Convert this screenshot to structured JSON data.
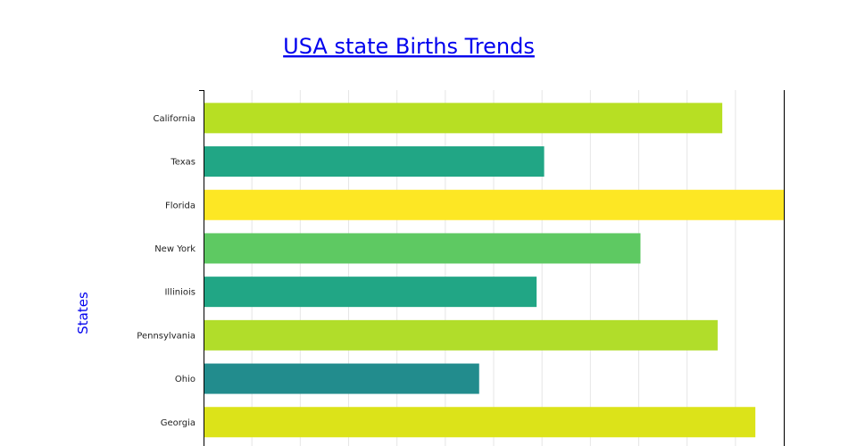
{
  "chart_data": {
    "type": "bar",
    "orientation": "horizontal",
    "title": "USA state Births Trends",
    "xlabel": "",
    "ylabel": "States",
    "categories": [
      "California",
      "Texas",
      "Florida",
      "New York",
      "Illiniois",
      "Pennsylvania",
      "Ohio",
      "Georgia"
    ],
    "values": [
      0.894,
      0.587,
      1.0,
      0.753,
      0.574,
      0.886,
      0.475,
      0.951
    ],
    "value_scale": "relative to longest bar (x-axis tick labels not visible)",
    "xlim": [
      0,
      1.0
    ],
    "grid": true,
    "legend": "none",
    "colors": [
      "#b7df23",
      "#21a685",
      "#fde724",
      "#5ec962",
      "#21a685",
      "#b1dd2a",
      "#228c8d",
      "#dce319"
    ]
  }
}
